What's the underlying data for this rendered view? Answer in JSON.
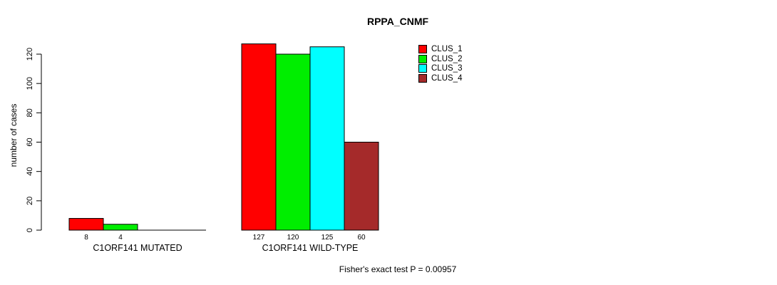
{
  "chart_data": {
    "type": "bar",
    "title": "RPPA_CNMF",
    "ylabel": "number of cases",
    "ylim": [
      0,
      120
    ],
    "yticks": [
      0,
      20,
      40,
      60,
      80,
      100,
      120
    ],
    "categories": [
      "C1ORF141 MUTATED",
      "C1ORF141 WILD-TYPE"
    ],
    "series": [
      {
        "name": "CLUS_1",
        "color": "#ff0000",
        "values": [
          8,
          127
        ]
      },
      {
        "name": "CLUS_2",
        "color": "#00ee00",
        "values": [
          4,
          120
        ]
      },
      {
        "name": "CLUS_3",
        "color": "#00ffff",
        "values": [
          0,
          125
        ]
      },
      {
        "name": "CLUS_4",
        "color": "#a52a2a",
        "values": [
          0,
          60
        ]
      }
    ],
    "bar_value_labels": [
      [
        "8",
        "4",
        "",
        ""
      ],
      [
        "127",
        "120",
        "125",
        "60"
      ]
    ],
    "legend_position": "top-right",
    "grid": false,
    "background": "#ffffff",
    "annotation": "Fisher's exact test P = 0.00957"
  }
}
